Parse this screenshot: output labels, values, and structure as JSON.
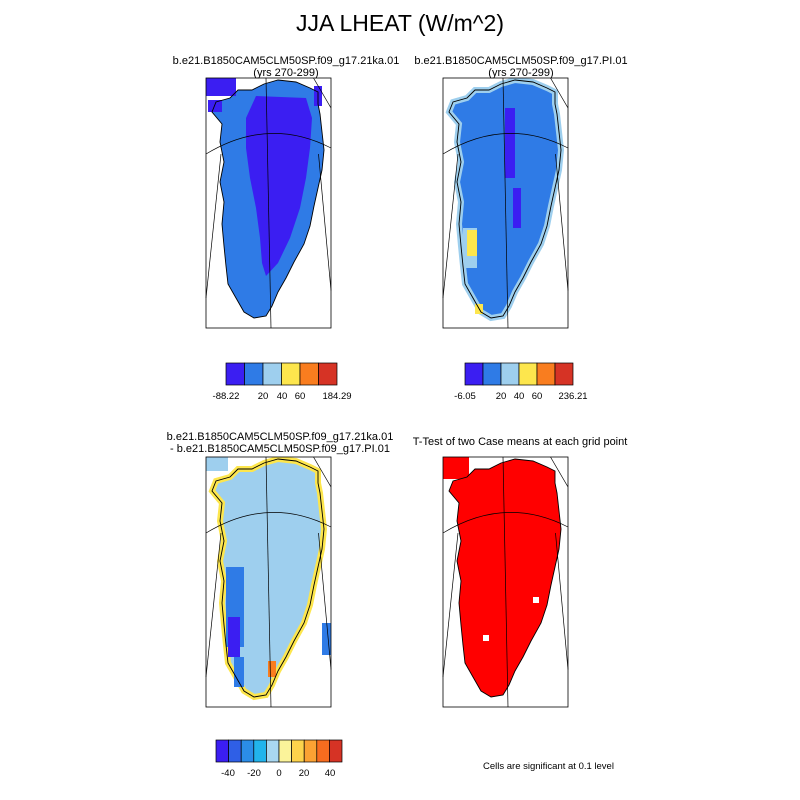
{
  "title": "JJA LHEAT (W/m^2)",
  "colors": {
    "c1": "#3b1ef2",
    "c2": "#2f7be6",
    "c3": "#9ecfee",
    "c4": "#fde64d",
    "c5": "#f97d1f",
    "c6": "#d63325",
    "outline": "#000000",
    "sig": "#ff0000"
  },
  "diff_colors": [
    "#3b1ef2",
    "#2f5fe6",
    "#2b8de8",
    "#22b4ec",
    "#a9d7f0",
    "#fbf39a",
    "#fdd34c",
    "#fba233",
    "#f76c1f",
    "#d63325"
  ],
  "chart_data": [
    {
      "type": "heatmap",
      "title": "b.e21.B1850CAM5CLM50SP.f09_g17.21ka.01",
      "subtitle": "(yrs 270-299)",
      "colorbar_labels": [
        "-88.22",
        "20",
        "40",
        "60",
        "184.29"
      ],
      "colorbar_levels": [
        -88.22,
        20,
        40,
        60,
        184.29
      ]
    },
    {
      "type": "heatmap",
      "title": "b.e21.B1850CAM5CLM50SP.f09_g17.PI.01",
      "subtitle": "(yrs 270-299)",
      "colorbar_labels": [
        "-6.05",
        "20",
        "40",
        "60",
        "236.21"
      ],
      "colorbar_levels": [
        -6.05,
        20,
        40,
        60,
        236.21
      ]
    },
    {
      "type": "heatmap",
      "title": "b.e21.B1850CAM5CLM50SP.f09_g17.21ka.01",
      "subtitle": "- b.e21.B1850CAM5CLM50SP.f09_g17.PI.01",
      "colorbar_labels": [
        "-40",
        "-20",
        "0",
        "20",
        "40"
      ],
      "colorbar_levels": [
        -40,
        -20,
        0,
        20,
        40
      ]
    },
    {
      "type": "heatmap",
      "title": "T-Test of two Case means at each grid point",
      "note": "Cells are significant at 0.1 level"
    }
  ]
}
